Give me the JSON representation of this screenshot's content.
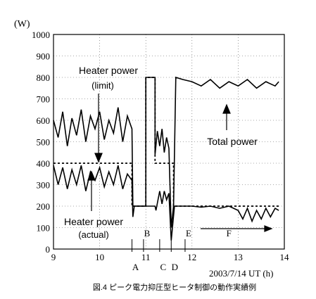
{
  "chart_data": {
    "type": "line",
    "ylabel": "(W)",
    "xlabel": "2003/7/14 UT (h)",
    "caption": "図.4 ピーク電力抑圧型ヒータ制御の動作実績例",
    "xlim": [
      9,
      14
    ],
    "ylim": [
      0,
      1000
    ],
    "x_ticks": [
      9,
      10,
      11,
      12,
      13,
      14
    ],
    "y_ticks": [
      0,
      100,
      200,
      300,
      400,
      500,
      600,
      700,
      800,
      900,
      1000
    ],
    "grid": "dotted",
    "series": [
      {
        "name": "Total power",
        "points": [
          [
            9.0,
            600
          ],
          [
            9.1,
            520
          ],
          [
            9.2,
            640
          ],
          [
            9.3,
            480
          ],
          [
            9.4,
            610
          ],
          [
            9.5,
            530
          ],
          [
            9.6,
            650
          ],
          [
            9.7,
            500
          ],
          [
            9.8,
            620
          ],
          [
            9.9,
            560
          ],
          [
            10.0,
            640
          ],
          [
            10.1,
            510
          ],
          [
            10.2,
            600
          ],
          [
            10.3,
            540
          ],
          [
            10.4,
            660
          ],
          [
            10.5,
            500
          ],
          [
            10.6,
            620
          ],
          [
            10.7,
            560
          ],
          [
            10.72,
            200
          ],
          [
            11.0,
            200
          ],
          [
            11.0,
            800
          ],
          [
            11.2,
            800
          ],
          [
            11.2,
            440
          ],
          [
            11.25,
            550
          ],
          [
            11.3,
            480
          ],
          [
            11.35,
            560
          ],
          [
            11.4,
            450
          ],
          [
            11.45,
            520
          ],
          [
            11.5,
            470
          ],
          [
            11.55,
            100
          ],
          [
            11.6,
            200
          ],
          [
            11.65,
            800
          ],
          [
            11.8,
            790
          ],
          [
            12.0,
            780
          ],
          [
            12.2,
            760
          ],
          [
            12.4,
            790
          ],
          [
            12.6,
            750
          ],
          [
            12.8,
            780
          ],
          [
            13.0,
            760
          ],
          [
            13.2,
            790
          ],
          [
            13.4,
            750
          ],
          [
            13.6,
            780
          ],
          [
            13.8,
            760
          ],
          [
            13.88,
            780
          ]
        ]
      },
      {
        "name": "Heater power (actual)",
        "points": [
          [
            9.0,
            390
          ],
          [
            9.1,
            300
          ],
          [
            9.2,
            380
          ],
          [
            9.3,
            280
          ],
          [
            9.4,
            370
          ],
          [
            9.5,
            300
          ],
          [
            9.6,
            390
          ],
          [
            9.7,
            270
          ],
          [
            9.8,
            360
          ],
          [
            9.9,
            320
          ],
          [
            10.0,
            380
          ],
          [
            10.1,
            290
          ],
          [
            10.2,
            360
          ],
          [
            10.3,
            300
          ],
          [
            10.4,
            390
          ],
          [
            10.5,
            280
          ],
          [
            10.6,
            350
          ],
          [
            10.7,
            320
          ],
          [
            10.72,
            150
          ],
          [
            10.75,
            200
          ],
          [
            11.0,
            200
          ],
          [
            11.2,
            200
          ],
          [
            11.22,
            180
          ],
          [
            11.3,
            270
          ],
          [
            11.35,
            210
          ],
          [
            11.4,
            270
          ],
          [
            11.45,
            230
          ],
          [
            11.5,
            260
          ],
          [
            11.55,
            40
          ],
          [
            11.62,
            200
          ],
          [
            11.8,
            200
          ],
          [
            12.0,
            200
          ],
          [
            12.2,
            195
          ],
          [
            12.4,
            200
          ],
          [
            12.6,
            190
          ],
          [
            12.8,
            200
          ],
          [
            13.0,
            180
          ],
          [
            13.1,
            140
          ],
          [
            13.2,
            190
          ],
          [
            13.3,
            130
          ],
          [
            13.4,
            180
          ],
          [
            13.5,
            140
          ],
          [
            13.6,
            190
          ],
          [
            13.7,
            150
          ],
          [
            13.8,
            190
          ],
          [
            13.88,
            180
          ]
        ]
      },
      {
        "name": "Heater power (limit)",
        "points": [
          [
            9.0,
            400
          ],
          [
            10.7,
            400
          ],
          [
            10.7,
            200
          ],
          [
            11.0,
            200
          ],
          [
            11.0,
            800
          ],
          [
            11.2,
            800
          ],
          [
            11.2,
            400
          ],
          [
            11.6,
            400
          ],
          [
            11.6,
            200
          ],
          [
            13.88,
            200
          ]
        ]
      }
    ],
    "annotations": {
      "heater_limit": [
        "Heater power",
        "(limit)"
      ],
      "heater_actual": [
        "Heater power",
        "(actual)"
      ],
      "total_power": "Total power",
      "events": [
        {
          "label": "A",
          "x": 10.7
        },
        {
          "label": "B",
          "x": 10.95
        },
        {
          "label": "C",
          "x": 11.3
        },
        {
          "label": "D",
          "x": 11.55
        },
        {
          "label": "E",
          "x": 11.85
        },
        {
          "label": "F",
          "x": 12.8
        }
      ]
    }
  }
}
